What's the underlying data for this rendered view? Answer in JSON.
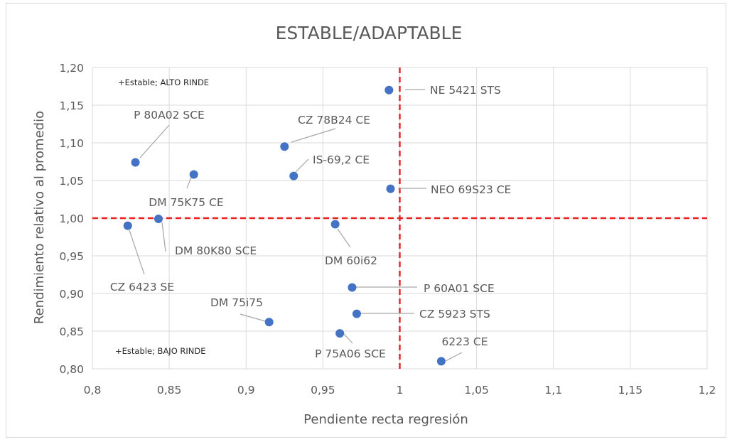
{
  "chart_data": {
    "type": "scatter",
    "title": "ESTABLE/ADAPTABLE",
    "xlabel": "Pendiente recta regresión",
    "ylabel": "Rendimiento relativo al promedio",
    "xlim": [
      0.8,
      1.2
    ],
    "ylim": [
      0.8,
      1.2
    ],
    "x_ticks": [
      "0,8",
      "0,85",
      "0,9",
      "0,95",
      "1",
      "1,05",
      "1,1",
      "1,15",
      "1,2"
    ],
    "y_ticks": [
      "0,80",
      "0,85",
      "0,90",
      "0,95",
      "1,00",
      "1,05",
      "1,10",
      "1,15",
      "1,20"
    ],
    "grid": true,
    "reference_lines": {
      "x": 1,
      "y": 1,
      "color": "#e8201f",
      "style": "dashed"
    },
    "marker_color": "#4472c4",
    "quadrant_labels": [
      "+Estable; ALTO RINDE",
      "+Estable; BAJO RINDE"
    ],
    "points": [
      {
        "name": "NE 5421 STS",
        "x": 0.993,
        "y": 1.17
      },
      {
        "name": "CZ 78B24 CE",
        "x": 0.925,
        "y": 1.095
      },
      {
        "name": "P 80A02 SCE",
        "x": 0.828,
        "y": 1.074
      },
      {
        "name": "IS-69,2 CE",
        "x": 0.931,
        "y": 1.056
      },
      {
        "name": "DM 75K75 CE",
        "x": 0.866,
        "y": 1.058
      },
      {
        "name": "NEO 69S23 CE",
        "x": 0.994,
        "y": 1.039
      },
      {
        "name": "DM 80K80 SCE",
        "x": 0.843,
        "y": 0.999
      },
      {
        "name": "CZ 6423 SE",
        "x": 0.823,
        "y": 0.99
      },
      {
        "name": "DM 60i62",
        "x": 0.958,
        "y": 0.992
      },
      {
        "name": "P 60A01 SCE",
        "x": 0.969,
        "y": 0.908
      },
      {
        "name": "CZ 5923 STS",
        "x": 0.972,
        "y": 0.873
      },
      {
        "name": "DM 75i75",
        "x": 0.915,
        "y": 0.862
      },
      {
        "name": "P 75A06 SCE",
        "x": 0.961,
        "y": 0.847
      },
      {
        "name": "6223 CE",
        "x": 1.027,
        "y": 0.81
      }
    ]
  }
}
